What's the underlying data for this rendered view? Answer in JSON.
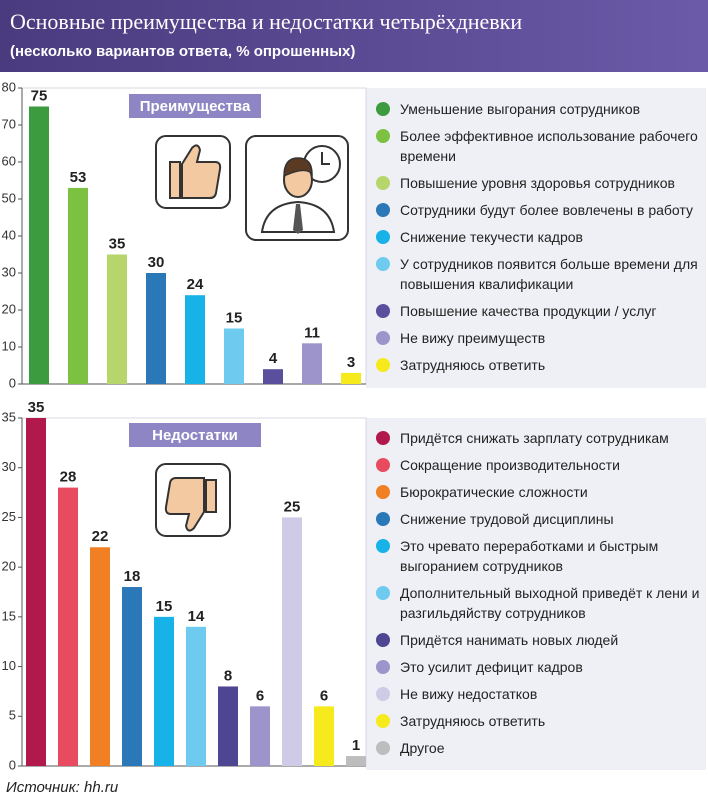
{
  "title": "Основные преимущества и недостатки четырёхдневки",
  "subtitle": "(несколько вариантов ответа, % опрошенных)",
  "source": "Источник: hh.ru",
  "chart_data": [
    {
      "type": "bar",
      "title": "Преимущества",
      "categories": [
        "Уменьшение выгорания сотрудников",
        "Более эффективное использование рабочего времени",
        "Повышение уровня здоровья сотрудников",
        "Сотрудники будут более вовлечены в работу",
        "Снижение текучести кадров",
        "У сотрудников появится больше времени для повышения квалификации",
        "Повышение качества продукции / услуг",
        "Не вижу преимуществ",
        "Затрудняюсь ответить"
      ],
      "values": [
        75,
        53,
        35,
        30,
        24,
        15,
        4,
        11,
        3
      ],
      "colors": [
        "#3c9a3f",
        "#7cc142",
        "#b6d66b",
        "#2a78b8",
        "#17b2e8",
        "#6ecbef",
        "#5a4f9d",
        "#9d94cc",
        "#f6ea1c"
      ],
      "ylim": [
        0,
        80
      ],
      "yticks": [
        0,
        10,
        20,
        30,
        40,
        50,
        60,
        70,
        80
      ]
    },
    {
      "type": "bar",
      "title": "Недостатки",
      "categories": [
        "Придётся снижать зарплату сотрудникам",
        "Сокращение производительности",
        "Бюрократические сложности",
        "Снижение трудовой дисциплины",
        "Это чревато переработками и быстрым выгоранием сотрудников",
        "Дополнительный выходной приведёт к лени и разгильдяйству сотрудников",
        "Придётся нанимать новых людей",
        "Это усилит дефицит кадров",
        "Не вижу недостатков",
        "Затрудняюсь ответить",
        "Другое"
      ],
      "values": [
        35,
        28,
        22,
        18,
        15,
        14,
        8,
        6,
        25,
        6,
        1
      ],
      "colors": [
        "#b1184b",
        "#e84b5f",
        "#f08023",
        "#2a78b8",
        "#17b2e8",
        "#6ecbef",
        "#4f4693",
        "#9d94cc",
        "#cfcae6",
        "#f6ea1c",
        "#bdbdbd"
      ],
      "ylim": [
        0,
        35
      ],
      "yticks": [
        0,
        5,
        10,
        15,
        20,
        25,
        30,
        35
      ]
    }
  ]
}
